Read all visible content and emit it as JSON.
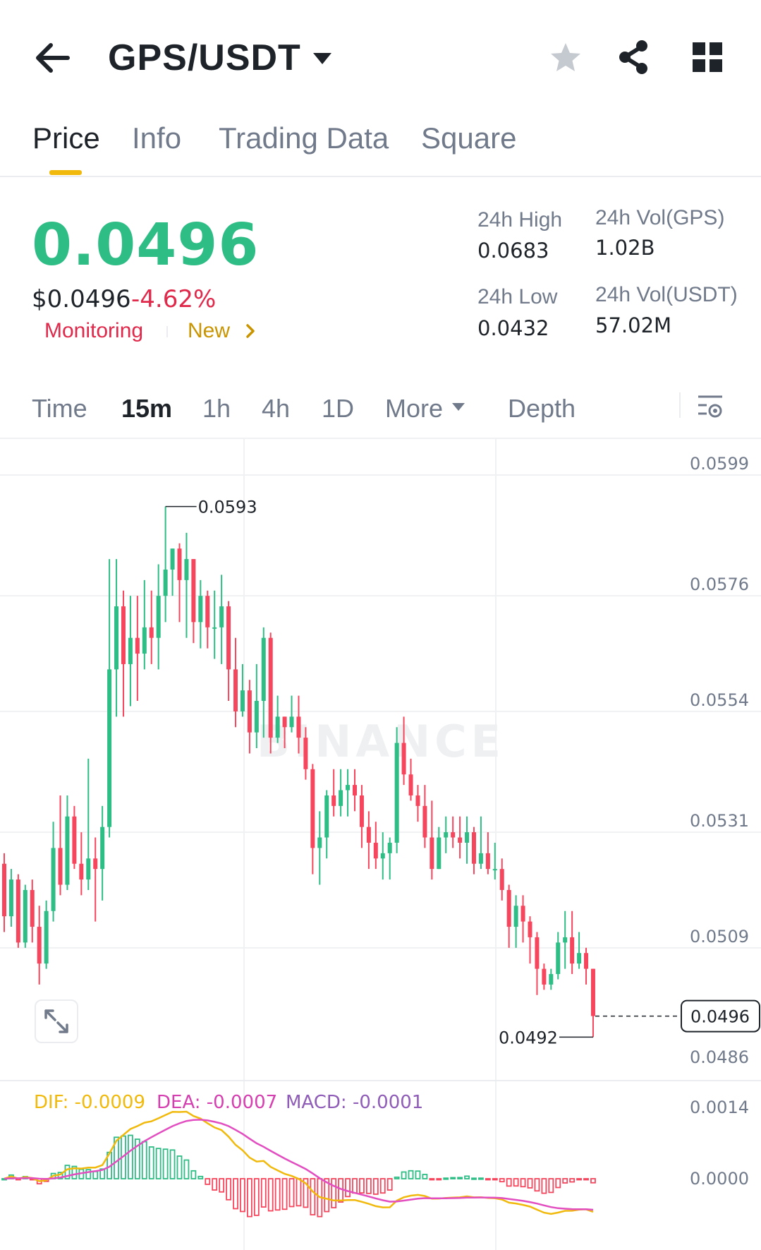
{
  "header": {
    "pair": "GPS/USDT",
    "icons": [
      "back-arrow-icon",
      "caret-down-icon",
      "star-icon",
      "share-icon",
      "grid-icon"
    ]
  },
  "tabs": [
    {
      "label": "Price",
      "active": true
    },
    {
      "label": "Info",
      "active": false
    },
    {
      "label": "Trading Data",
      "active": false
    },
    {
      "label": "Square",
      "active": false
    }
  ],
  "ticker": {
    "last_price": "0.0496",
    "usd_price": "$0.0496",
    "change_pct": "-4.62%",
    "tag_monitoring": "Monitoring",
    "tag_new": "New",
    "high_label": "24h High",
    "high_value": "0.0683",
    "low_label": "24h Low",
    "low_value": "0.0432",
    "vol_base_label": "24h Vol(GPS)",
    "vol_base_value": "1.02B",
    "vol_quote_label": "24h Vol(USDT)",
    "vol_quote_value": "57.02M"
  },
  "intervals": {
    "items": [
      {
        "label": "Time",
        "active": false
      },
      {
        "label": "15m",
        "active": true
      },
      {
        "label": "1h",
        "active": false
      },
      {
        "label": "4h",
        "active": false
      },
      {
        "label": "1D",
        "active": false
      },
      {
        "label": "More",
        "active": false
      },
      {
        "label": "Depth",
        "active": false
      }
    ]
  },
  "chart": {
    "watermark": "BINANCE",
    "price_axis": [
      "0.0599",
      "0.0576",
      "0.0554",
      "0.0531",
      "0.0509",
      "0.0486"
    ],
    "current_price_tag": "0.0496",
    "max_label": "0.0593",
    "min_label": "0.0492",
    "macd": {
      "dif": "DIF: -0.0009",
      "dea": "DEA: -0.0007",
      "macd": "MACD: -0.0001",
      "axis": [
        "0.0014",
        "0.0000"
      ]
    },
    "colors": {
      "up": "#2ebd85",
      "down": "#f6465d",
      "dif": "#f0b90b",
      "dea": "#e24dc0"
    },
    "candles": [
      [
        0.0525,
        0.0515,
        0.0527,
        0.0512
      ],
      [
        0.0515,
        0.0522,
        0.0524,
        0.0513
      ],
      [
        0.0522,
        0.051,
        0.0523,
        0.0509
      ],
      [
        0.051,
        0.052,
        0.0521,
        0.0509
      ],
      [
        0.052,
        0.0513,
        0.0522,
        0.051
      ],
      [
        0.0513,
        0.0506,
        0.0517,
        0.0502
      ],
      [
        0.0506,
        0.0516,
        0.0518,
        0.0505
      ],
      [
        0.0516,
        0.0528,
        0.0533,
        0.0514
      ],
      [
        0.0528,
        0.0521,
        0.0538,
        0.0519
      ],
      [
        0.0521,
        0.0534,
        0.0538,
        0.052
      ],
      [
        0.0534,
        0.0525,
        0.0536,
        0.0524
      ],
      [
        0.0525,
        0.0522,
        0.0531,
        0.0519
      ],
      [
        0.0522,
        0.0526,
        0.0545,
        0.052
      ],
      [
        0.0526,
        0.0524,
        0.053,
        0.0514
      ],
      [
        0.0524,
        0.0532,
        0.0536,
        0.0518
      ],
      [
        0.0532,
        0.0562,
        0.0583,
        0.053
      ],
      [
        0.0562,
        0.0574,
        0.0583,
        0.0553
      ],
      [
        0.0574,
        0.0563,
        0.0577,
        0.0553
      ],
      [
        0.0563,
        0.0568,
        0.0576,
        0.0555
      ],
      [
        0.0568,
        0.0565,
        0.0576,
        0.0556
      ],
      [
        0.0565,
        0.057,
        0.0579,
        0.0562
      ],
      [
        0.057,
        0.0568,
        0.0577,
        0.0563
      ],
      [
        0.0568,
        0.0576,
        0.0582,
        0.0562
      ],
      [
        0.0576,
        0.0581,
        0.0593,
        0.0571
      ],
      [
        0.0581,
        0.0585,
        0.0585,
        0.0576
      ],
      [
        0.0585,
        0.0579,
        0.0586,
        0.0571
      ],
      [
        0.0579,
        0.0583,
        0.0588,
        0.0568
      ],
      [
        0.0583,
        0.0571,
        0.0583,
        0.0567
      ],
      [
        0.0571,
        0.0576,
        0.0579,
        0.0566
      ],
      [
        0.0576,
        0.057,
        0.0577,
        0.0566
      ],
      [
        0.057,
        0.057,
        0.0577,
        0.0564
      ],
      [
        0.057,
        0.0574,
        0.058,
        0.0563
      ],
      [
        0.0574,
        0.0562,
        0.0575,
        0.0556
      ],
      [
        0.0562,
        0.0554,
        0.0568,
        0.0551
      ],
      [
        0.0554,
        0.0558,
        0.0563,
        0.0553
      ],
      [
        0.0558,
        0.055,
        0.056,
        0.0546
      ],
      [
        0.055,
        0.0556,
        0.0563,
        0.0547
      ],
      [
        0.0556,
        0.0568,
        0.057,
        0.0549
      ],
      [
        0.0568,
        0.0549,
        0.0569,
        0.0546
      ],
      [
        0.0549,
        0.0553,
        0.0557,
        0.0548
      ],
      [
        0.0553,
        0.0551,
        0.0553,
        0.0547
      ],
      [
        0.0551,
        0.0553,
        0.0557,
        0.055
      ],
      [
        0.0553,
        0.0549,
        0.0557,
        0.0546
      ],
      [
        0.0549,
        0.0543,
        0.0551,
        0.0541
      ],
      [
        0.0543,
        0.0528,
        0.0544,
        0.0523
      ],
      [
        0.0528,
        0.053,
        0.0535,
        0.0521
      ],
      [
        0.053,
        0.0538,
        0.0539,
        0.0526
      ],
      [
        0.0538,
        0.0536,
        0.0543,
        0.0534
      ],
      [
        0.0536,
        0.0539,
        0.0543,
        0.0534
      ],
      [
        0.0539,
        0.054,
        0.0543,
        0.0534
      ],
      [
        0.054,
        0.0538,
        0.0543,
        0.0535
      ],
      [
        0.0538,
        0.0532,
        0.054,
        0.0528
      ],
      [
        0.0532,
        0.0529,
        0.0535,
        0.0524
      ],
      [
        0.0529,
        0.0526,
        0.0533,
        0.0524
      ],
      [
        0.0526,
        0.0527,
        0.0531,
        0.0522
      ],
      [
        0.0527,
        0.0529,
        0.053,
        0.0522
      ],
      [
        0.0529,
        0.0548,
        0.0551,
        0.0527
      ],
      [
        0.0548,
        0.0542,
        0.0553,
        0.054
      ],
      [
        0.0542,
        0.0538,
        0.0545,
        0.0537
      ],
      [
        0.0538,
        0.0536,
        0.054,
        0.0533
      ],
      [
        0.0536,
        0.053,
        0.054,
        0.0528
      ],
      [
        0.053,
        0.0524,
        0.0537,
        0.0522
      ],
      [
        0.0524,
        0.053,
        0.0532,
        0.0524
      ],
      [
        0.053,
        0.0531,
        0.0534,
        0.0527
      ],
      [
        0.0531,
        0.053,
        0.0534,
        0.0528
      ],
      [
        0.053,
        0.0529,
        0.0534,
        0.0526
      ],
      [
        0.0529,
        0.0531,
        0.0534,
        0.0525
      ],
      [
        0.0531,
        0.0525,
        0.0532,
        0.0523
      ],
      [
        0.0525,
        0.0527,
        0.0534,
        0.0524
      ],
      [
        0.0527,
        0.0524,
        0.0531,
        0.0523
      ],
      [
        0.0524,
        0.0524,
        0.0529,
        0.0522
      ],
      [
        0.0524,
        0.052,
        0.0526,
        0.0518
      ],
      [
        0.052,
        0.0513,
        0.0521,
        0.0509
      ],
      [
        0.0513,
        0.0517,
        0.0519,
        0.0509
      ],
      [
        0.0517,
        0.0514,
        0.0519,
        0.051
      ],
      [
        0.0514,
        0.0511,
        0.0515,
        0.0506
      ],
      [
        0.0511,
        0.0505,
        0.0512,
        0.05
      ],
      [
        0.0505,
        0.0502,
        0.0506,
        0.0501
      ],
      [
        0.0502,
        0.0504,
        0.0505,
        0.0501
      ],
      [
        0.0504,
        0.051,
        0.0512,
        0.0503
      ],
      [
        0.051,
        0.0511,
        0.0516,
        0.0505
      ],
      [
        0.0511,
        0.0506,
        0.0516,
        0.0504
      ],
      [
        0.0506,
        0.0508,
        0.0512,
        0.0505
      ],
      [
        0.0508,
        0.0505,
        0.0509,
        0.0502
      ],
      [
        0.0505,
        0.0496,
        0.0505,
        0.0492
      ]
    ]
  }
}
